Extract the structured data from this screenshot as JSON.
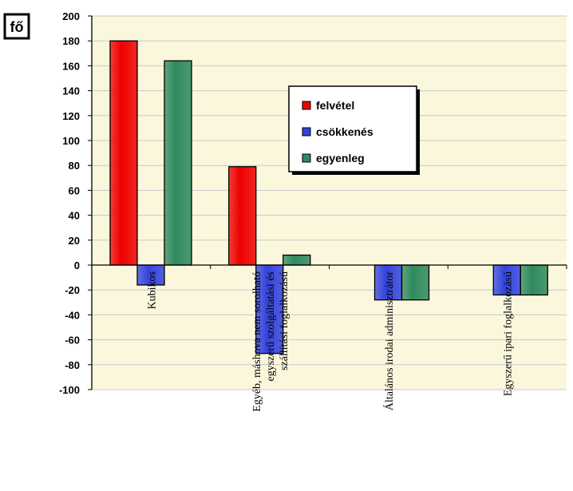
{
  "chart_data": {
    "type": "bar",
    "unit_label": "fő",
    "categories": [
      [
        "Kubikos"
      ],
      [
        "Egyéb, máshova nem sorolható",
        "egyszerű szolgáltatási és",
        "szállítási foglalkozású"
      ],
      [
        "Általános irodai adminisztrátor"
      ],
      [
        "Egyszerű ipari foglalkozású"
      ]
    ],
    "series": [
      {
        "name": "felvétel",
        "color": "#ee0000",
        "values": [
          180,
          79,
          0,
          0
        ]
      },
      {
        "name": "csökkenés",
        "color": "#3344dd",
        "values": [
          -16,
          -71,
          -28,
          -24
        ]
      },
      {
        "name": "egyenleg",
        "color": "#2f8a5e",
        "values": [
          164,
          8,
          -28,
          -24
        ]
      }
    ],
    "ylim": [
      -100,
      200
    ],
    "yticks": [
      200,
      180,
      160,
      140,
      120,
      100,
      80,
      60,
      40,
      20,
      0,
      -20,
      -40,
      -60,
      -80,
      -100
    ],
    "grid": true,
    "legend_position": "center-right",
    "colors": {
      "plot_background": "#fbf7dc",
      "grid": "#c8c8c8"
    }
  }
}
